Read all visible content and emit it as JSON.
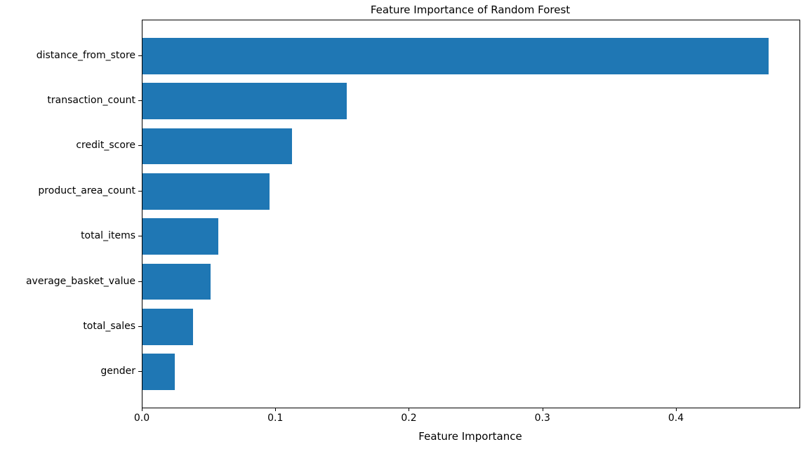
{
  "chart_data": {
    "type": "bar",
    "orientation": "horizontal",
    "title": "Feature Importance of Random Forest",
    "xlabel": "Feature Importance",
    "ylabel": "",
    "categories": [
      "distance_from_store",
      "transaction_count",
      "credit_score",
      "product_area_count",
      "total_items",
      "average_basket_value",
      "total_sales",
      "gender"
    ],
    "values": [
      0.469,
      0.153,
      0.112,
      0.095,
      0.057,
      0.051,
      0.038,
      0.024
    ],
    "xlim": [
      0,
      0.492
    ],
    "xticks": [
      0.0,
      0.1,
      0.2,
      0.3,
      0.4
    ],
    "xtick_labels": [
      "0.0",
      "0.1",
      "0.2",
      "0.3",
      "0.4"
    ],
    "bar_color": "#1f77b4",
    "axis_color": "#000000",
    "text_color": "#000000",
    "background_color": "#ffffff",
    "grid": false,
    "legend_position": "none",
    "sort_order": "descending_top_to_bottom"
  }
}
